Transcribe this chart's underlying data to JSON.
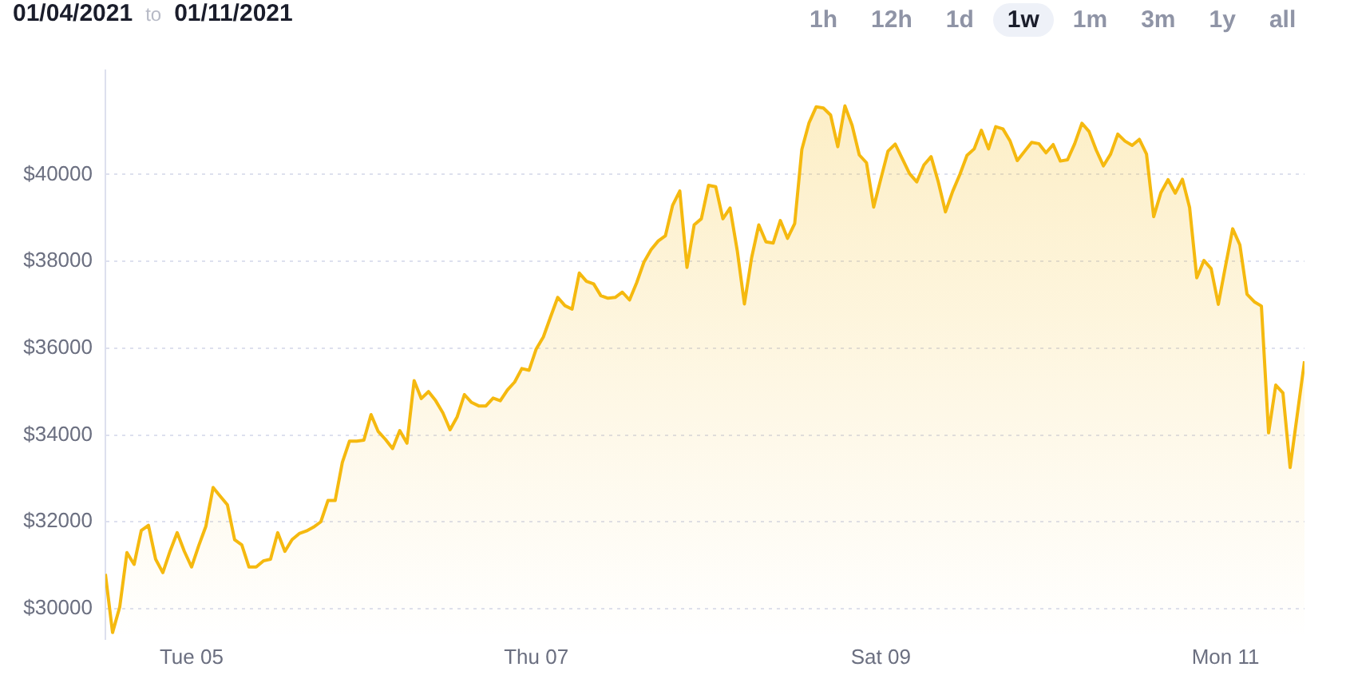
{
  "chart_data": {
    "type": "area",
    "annotations": [
      "01/04/2021",
      "to",
      "01/11/2021",
      "1h",
      "12h",
      "1d",
      "1w",
      "1m",
      "3m",
      "1y",
      "all"
    ],
    "x": [
      "2021-01-04T12:00",
      "2021-01-04T13:00",
      "2021-01-04T14:00",
      "2021-01-04T15:00",
      "2021-01-04T16:00",
      "2021-01-04T17:00",
      "2021-01-04T18:00",
      "2021-01-04T19:00",
      "2021-01-04T20:00",
      "2021-01-04T21:00",
      "2021-01-04T22:00",
      "2021-01-04T23:00",
      "2021-01-05T00:00",
      "2021-01-05T01:00",
      "2021-01-05T02:00",
      "2021-01-05T03:00",
      "2021-01-05T04:00",
      "2021-01-05T05:00",
      "2021-01-05T06:00",
      "2021-01-05T07:00",
      "2021-01-05T08:00",
      "2021-01-05T09:00",
      "2021-01-05T10:00",
      "2021-01-05T11:00",
      "2021-01-05T12:00",
      "2021-01-05T13:00",
      "2021-01-05T14:00",
      "2021-01-05T15:00",
      "2021-01-05T16:00",
      "2021-01-05T17:00",
      "2021-01-05T18:00",
      "2021-01-05T19:00",
      "2021-01-05T20:00",
      "2021-01-05T21:00",
      "2021-01-05T22:00",
      "2021-01-05T23:00",
      "2021-01-06T00:00",
      "2021-01-06T01:00",
      "2021-01-06T02:00",
      "2021-01-06T03:00",
      "2021-01-06T04:00",
      "2021-01-06T05:00",
      "2021-01-06T06:00",
      "2021-01-06T07:00",
      "2021-01-06T08:00",
      "2021-01-06T09:00",
      "2021-01-06T10:00",
      "2021-01-06T11:00",
      "2021-01-06T12:00",
      "2021-01-06T13:00",
      "2021-01-06T14:00",
      "2021-01-06T15:00",
      "2021-01-06T16:00",
      "2021-01-06T17:00",
      "2021-01-06T18:00",
      "2021-01-06T19:00",
      "2021-01-06T20:00",
      "2021-01-06T21:00",
      "2021-01-06T22:00",
      "2021-01-06T23:00",
      "2021-01-07T00:00",
      "2021-01-07T01:00",
      "2021-01-07T02:00",
      "2021-01-07T03:00",
      "2021-01-07T04:00",
      "2021-01-07T05:00",
      "2021-01-07T06:00",
      "2021-01-07T07:00",
      "2021-01-07T08:00",
      "2021-01-07T09:00",
      "2021-01-07T10:00",
      "2021-01-07T11:00",
      "2021-01-07T12:00",
      "2021-01-07T13:00",
      "2021-01-07T14:00",
      "2021-01-07T15:00",
      "2021-01-07T16:00",
      "2021-01-07T17:00",
      "2021-01-07T18:00",
      "2021-01-07T19:00",
      "2021-01-07T20:00",
      "2021-01-07T21:00",
      "2021-01-07T22:00",
      "2021-01-07T23:00",
      "2021-01-08T00:00",
      "2021-01-08T01:00",
      "2021-01-08T02:00",
      "2021-01-08T03:00",
      "2021-01-08T04:00",
      "2021-01-08T05:00",
      "2021-01-08T06:00",
      "2021-01-08T07:00",
      "2021-01-08T08:00",
      "2021-01-08T09:00",
      "2021-01-08T10:00",
      "2021-01-08T11:00",
      "2021-01-08T12:00",
      "2021-01-08T13:00",
      "2021-01-08T14:00",
      "2021-01-08T15:00",
      "2021-01-08T16:00",
      "2021-01-08T17:00",
      "2021-01-08T18:00",
      "2021-01-08T19:00",
      "2021-01-08T20:00",
      "2021-01-08T21:00",
      "2021-01-08T22:00",
      "2021-01-08T23:00",
      "2021-01-09T00:00",
      "2021-01-09T01:00",
      "2021-01-09T02:00",
      "2021-01-09T03:00",
      "2021-01-09T04:00",
      "2021-01-09T05:00",
      "2021-01-09T06:00",
      "2021-01-09T07:00",
      "2021-01-09T08:00",
      "2021-01-09T09:00",
      "2021-01-09T10:00",
      "2021-01-09T11:00",
      "2021-01-09T12:00",
      "2021-01-09T13:00",
      "2021-01-09T14:00",
      "2021-01-09T15:00",
      "2021-01-09T16:00",
      "2021-01-09T17:00",
      "2021-01-09T18:00",
      "2021-01-09T19:00",
      "2021-01-09T20:00",
      "2021-01-09T21:00",
      "2021-01-09T22:00",
      "2021-01-09T23:00",
      "2021-01-10T00:00",
      "2021-01-10T01:00",
      "2021-01-10T02:00",
      "2021-01-10T03:00",
      "2021-01-10T04:00",
      "2021-01-10T05:00",
      "2021-01-10T06:00",
      "2021-01-10T07:00",
      "2021-01-10T08:00",
      "2021-01-10T09:00",
      "2021-01-10T10:00",
      "2021-01-10T11:00",
      "2021-01-10T12:00",
      "2021-01-10T13:00",
      "2021-01-10T14:00",
      "2021-01-10T15:00",
      "2021-01-10T16:00",
      "2021-01-10T17:00",
      "2021-01-10T18:00",
      "2021-01-10T19:00",
      "2021-01-10T20:00",
      "2021-01-10T21:00",
      "2021-01-10T22:00",
      "2021-01-10T23:00",
      "2021-01-11T00:00",
      "2021-01-11T01:00",
      "2021-01-11T02:00",
      "2021-01-11T03:00",
      "2021-01-11T04:00",
      "2021-01-11T05:00",
      "2021-01-11T06:00",
      "2021-01-11T07:00",
      "2021-01-11T08:00",
      "2021-01-11T09:00",
      "2021-01-11T11:00"
    ],
    "series": [
      {
        "color": "#f5b90f",
        "values": [
          30800,
          29450,
          30040,
          31290,
          31020,
          31800,
          31920,
          31140,
          30830,
          31320,
          31750,
          31320,
          30960,
          31450,
          31900,
          32790,
          32590,
          32390,
          31590,
          31470,
          30960,
          30960,
          31100,
          31140,
          31750,
          31320,
          31590,
          31730,
          31790,
          31880,
          32000,
          32490,
          32490,
          33370,
          33860,
          33860,
          33880,
          34470,
          34080,
          33900,
          33690,
          34100,
          33810,
          35250,
          34840,
          35000,
          34790,
          34510,
          34120,
          34420,
          34930,
          34750,
          34670,
          34670,
          34850,
          34790,
          35040,
          35220,
          35530,
          35490,
          35980,
          36260,
          36720,
          37170,
          36980,
          36900,
          37730,
          37540,
          37480,
          37210,
          37150,
          37170,
          37290,
          37110,
          37510,
          37980,
          38270,
          38470,
          38590,
          39290,
          39620,
          37860,
          38840,
          38980,
          39750,
          39720,
          38980,
          39230,
          38250,
          37020,
          38080,
          38840,
          38450,
          38420,
          38940,
          38530,
          38870,
          40580,
          41190,
          41560,
          41530,
          41370,
          40640,
          41580,
          41130,
          40450,
          40270,
          39250,
          39900,
          40540,
          40700,
          40360,
          40020,
          39830,
          40220,
          40410,
          39830,
          39140,
          39610,
          40000,
          40440,
          40590,
          41020,
          40590,
          41100,
          41050,
          40770,
          40320,
          40530,
          40740,
          40710,
          40500,
          40690,
          40310,
          40340,
          40710,
          41180,
          40990,
          40560,
          40200,
          40470,
          40930,
          40770,
          40670,
          40810,
          40470,
          39030,
          39580,
          39880,
          39570,
          39890,
          39240,
          37620,
          38020,
          37830,
          37010,
          37890,
          38750,
          38380,
          37240,
          37070,
          36970,
          34050,
          35150,
          34970,
          33250,
          35700
        ]
      }
    ],
    "xlim": [
      "2021-01-04T12:00",
      "2021-01-11T11:00"
    ],
    "xticks": [
      {
        "value": "2021-01-05",
        "label": "Tue 05"
      },
      {
        "value": "2021-01-07",
        "label": "Thu 07"
      },
      {
        "value": "2021-01-09",
        "label": "Sat 09"
      },
      {
        "value": "2021-01-11",
        "label": "Mon 11"
      }
    ],
    "ylim": [
      29300,
      42400
    ],
    "yticks": [
      {
        "value": 30000,
        "label": "$30000"
      },
      {
        "value": 32000,
        "label": "$32000"
      },
      {
        "value": 34000,
        "label": "$34000"
      },
      {
        "value": 36000,
        "label": "$36000"
      },
      {
        "value": 38000,
        "label": "$38000"
      },
      {
        "value": 40000,
        "label": "$40000"
      }
    ],
    "grid": "y"
  }
}
